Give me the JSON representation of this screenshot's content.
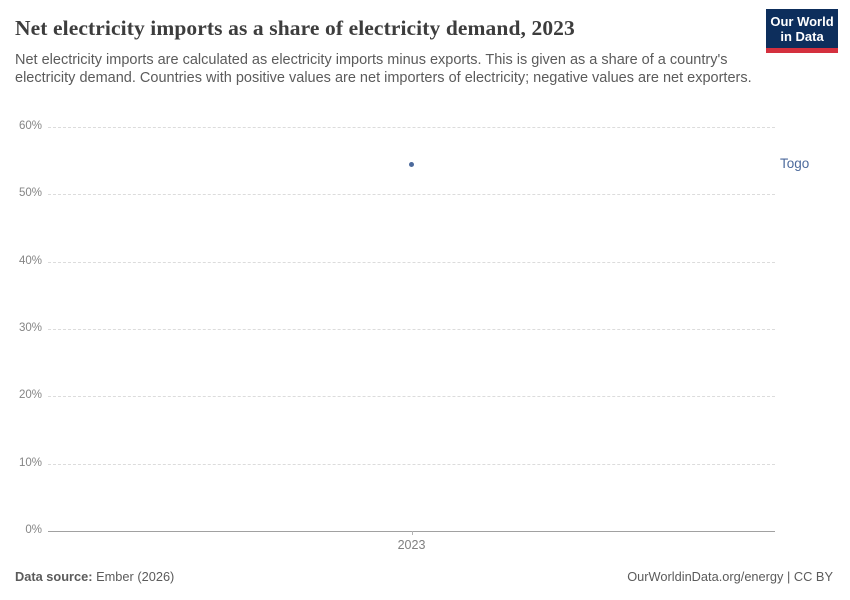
{
  "header": {
    "title": "Net electricity imports as a share of electricity demand, 2023",
    "subtitle": "Net electricity imports are calculated as electricity imports minus exports. This is given as a share of a country's electricity demand. Countries with positive values are net importers of electricity; negative values are net exporters.",
    "logo": {
      "line1": "Our World",
      "line2": "in Data",
      "bg_color": "#0d2e5c",
      "stripe_color": "#d4303e"
    }
  },
  "chart_data": {
    "type": "scatter",
    "title": "Net electricity imports as a share of electricity demand, 2023",
    "x": [
      2023
    ],
    "series": [
      {
        "name": "Togo",
        "values": [
          54.5
        ],
        "color": "#4c6a9c"
      }
    ],
    "xlabel": "",
    "ylabel": "",
    "ylim": [
      0,
      60
    ],
    "yticks": [
      0,
      10,
      20,
      30,
      40,
      50,
      60
    ],
    "ytick_suffix": "%",
    "xtick_labels": [
      "2023"
    ],
    "grid": "horizontal-dashed",
    "legend_position": "right-of-point-label",
    "accent_color": "#4c6a9c"
  },
  "footer": {
    "source_label": "Data source:",
    "source_value": " Ember (2026)",
    "right_text": "OurWorldinData.org/energy | CC BY"
  }
}
